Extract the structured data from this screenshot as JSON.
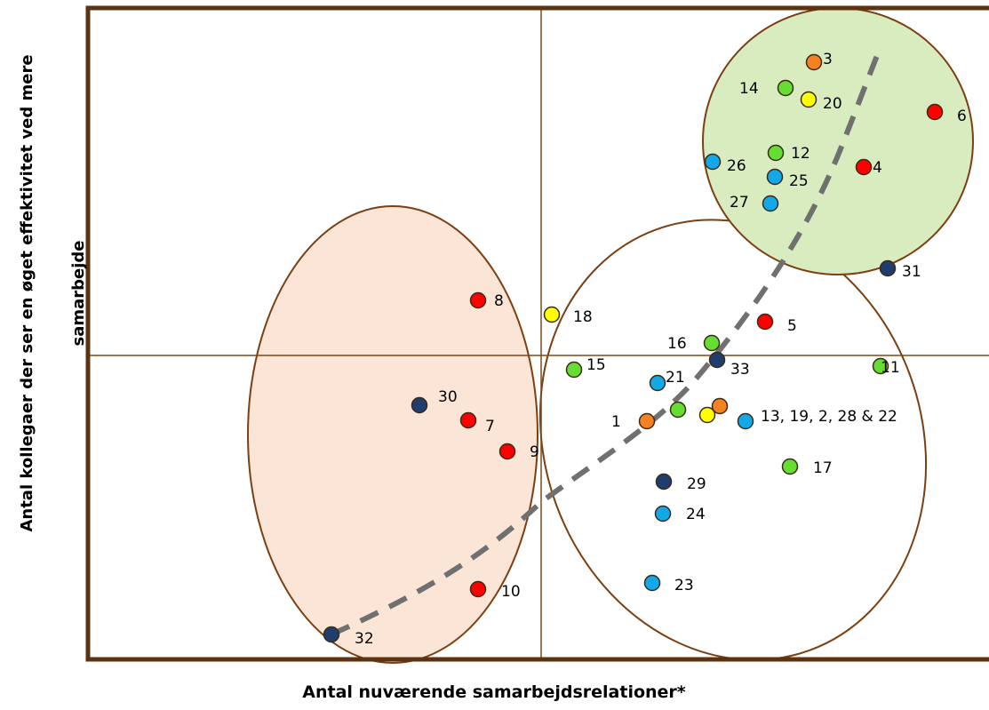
{
  "chart_data": {
    "type": "scatter",
    "xlabel": "Antal nuværende samarbejdsrelationer*",
    "ylabel_lines": [
      "Antal kollegaer der ser en øget effektivitet ved mere",
      "samarbejde"
    ],
    "grid": false,
    "quadrant_lines": true,
    "colors": {
      "red": "#ff0000",
      "orange": "#f58220",
      "yellow": "#ffff00",
      "green": "#66dd33",
      "lightblue": "#13a8e8",
      "navy": "#1f3e6e",
      "frame": "#5c3310"
    },
    "clusters": [
      {
        "fill": "#fbe5d6",
        "stroke": "#7b3f12"
      },
      {
        "fill": "none",
        "stroke": "#7b3f12"
      },
      {
        "fill": "#d8ecc0",
        "stroke": "#7b3f12"
      }
    ],
    "trend_line": {
      "style": "dashed",
      "color": "#707070"
    },
    "points": [
      {
        "label": "3",
        "color": "orange"
      },
      {
        "label": "14",
        "color": "green"
      },
      {
        "label": "20",
        "color": "yellow"
      },
      {
        "label": "6",
        "color": "red"
      },
      {
        "label": "12",
        "color": "green"
      },
      {
        "label": "26",
        "color": "lightblue"
      },
      {
        "label": "4",
        "color": "red"
      },
      {
        "label": "25",
        "color": "lightblue"
      },
      {
        "label": "27",
        "color": "lightblue"
      },
      {
        "label": "31",
        "color": "navy"
      },
      {
        "label": "8",
        "color": "red"
      },
      {
        "label": "18",
        "color": "yellow"
      },
      {
        "label": "5",
        "color": "red"
      },
      {
        "label": "16",
        "color": "green"
      },
      {
        "label": "15",
        "color": "green"
      },
      {
        "label": "33",
        "color": "navy"
      },
      {
        "label": "11",
        "color": "green"
      },
      {
        "label": "21",
        "color": "lightblue"
      },
      {
        "label": "30",
        "color": "navy"
      },
      {
        "label": "7",
        "color": "red"
      },
      {
        "label": "9",
        "color": "red"
      },
      {
        "label": "1",
        "color": "orange"
      },
      {
        "label": "",
        "color": "green"
      },
      {
        "label": "",
        "color": "yellow"
      },
      {
        "label": "",
        "color": "orange"
      },
      {
        "label": "13, 19, 2, 28 & 22",
        "color": "lightblue"
      },
      {
        "label": "17",
        "color": "green"
      },
      {
        "label": "29",
        "color": "navy"
      },
      {
        "label": "24",
        "color": "lightblue"
      },
      {
        "label": "23",
        "color": "lightblue"
      },
      {
        "label": "10",
        "color": "red"
      },
      {
        "label": "32",
        "color": "navy"
      }
    ]
  }
}
